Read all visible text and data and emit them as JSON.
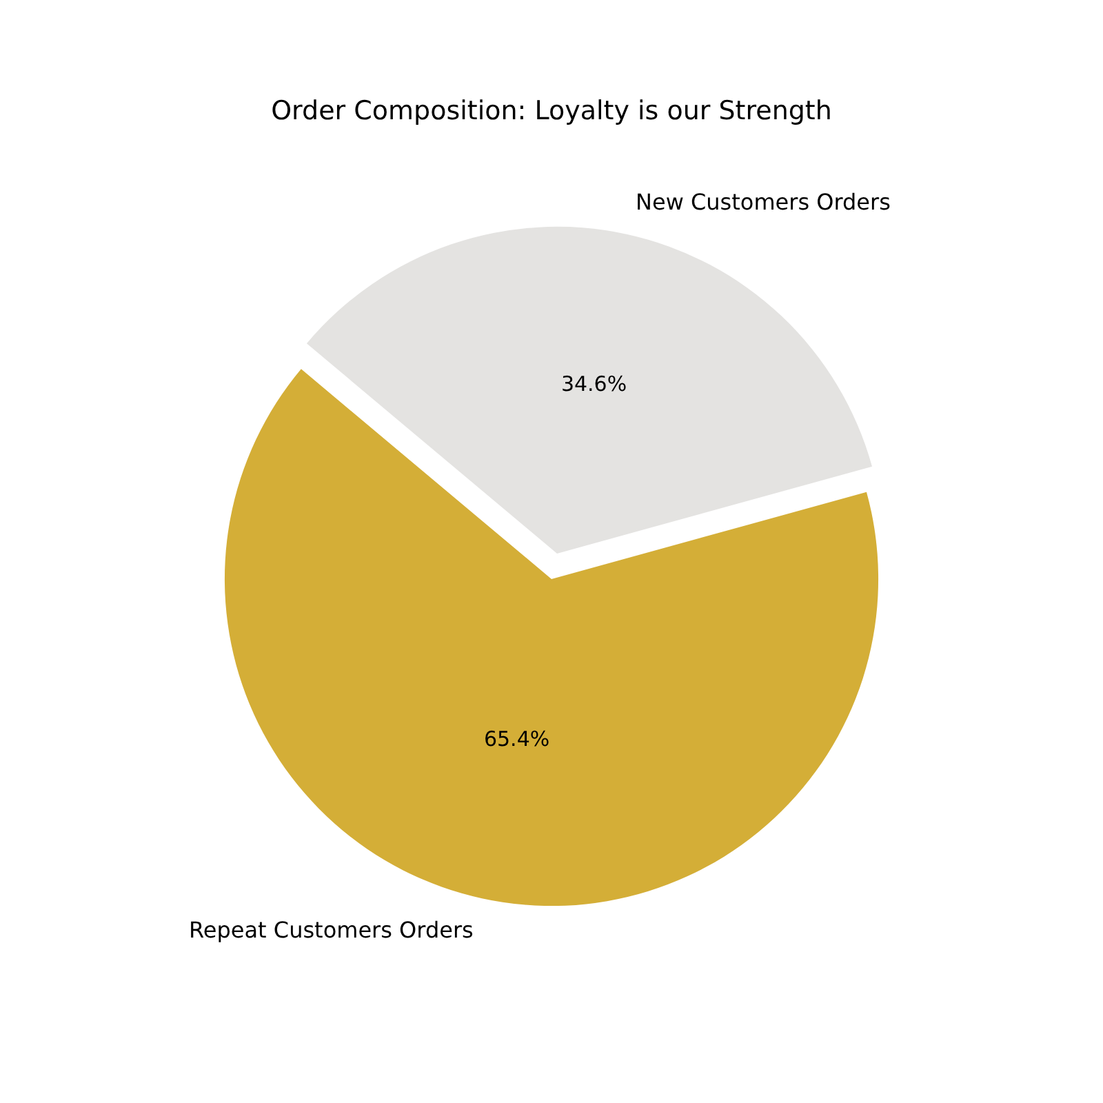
{
  "chart_data": {
    "type": "pie",
    "title": "Order Composition: Loyalty is our Strength",
    "categories": [
      "Repeat Customers Orders",
      "New Customers Orders"
    ],
    "values": [
      65.4,
      34.6
    ],
    "value_labels": [
      "65.4%",
      "34.6%"
    ],
    "colors": [
      "#d4ae37",
      "#e4e3e1"
    ],
    "legend": false
  }
}
